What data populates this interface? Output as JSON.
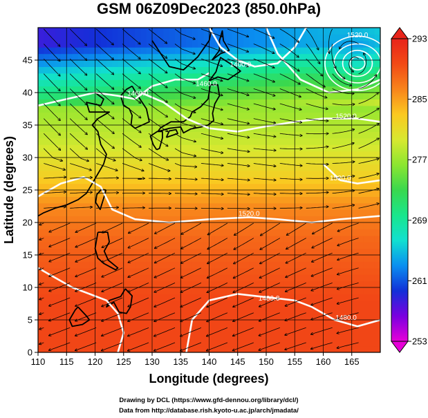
{
  "chart_data": {
    "type": "heatmap",
    "title": "GSM 06Z09Dec2023 (850.0hPa)",
    "xlabel": "Longitude (degrees)",
    "ylabel": "Latitude  (degrees)",
    "xlim": [
      110,
      170
    ],
    "ylim": [
      0,
      50
    ],
    "xticks": [
      110,
      115,
      120,
      125,
      130,
      135,
      140,
      145,
      150,
      155,
      160,
      165
    ],
    "yticks": [
      0,
      5,
      10,
      15,
      20,
      25,
      30,
      35,
      40,
      45
    ],
    "grid": true,
    "colorbar": {
      "min": 253,
      "max": 293,
      "ticks": [
        253,
        261,
        269,
        277,
        285,
        293
      ],
      "colors": [
        "#e600d8",
        "#7a00e0",
        "#1230d8",
        "#0a8ff0",
        "#11e0d0",
        "#19e68c",
        "#3ad84e",
        "#8ce630",
        "#d8e830",
        "#fbc820",
        "#f8841c",
        "#f24a16",
        "#e8241a"
      ]
    },
    "temperature_field": {
      "description_values_by_latitude_band": [
        {
          "lat": 47.5,
          "value": 262
        },
        {
          "lat": 42.5,
          "value": 270
        },
        {
          "lat": 37.5,
          "value": 277
        },
        {
          "lat": 32.5,
          "value": 279
        },
        {
          "lat": 27.5,
          "value": 282
        },
        {
          "lat": 22.5,
          "value": 286
        },
        {
          "lat": 17.5,
          "value": 288
        },
        {
          "lat": 12.5,
          "value": 289
        },
        {
          "lat": 7.5,
          "value": 290
        },
        {
          "lat": 2.5,
          "value": 290
        }
      ]
    },
    "contour_labels": [
      {
        "text": "1520.0",
        "lon": 166,
        "lat": 48.5
      },
      {
        "text": "1400.0",
        "lon": 145.5,
        "lat": 44
      },
      {
        "text": "1460.0",
        "lon": 139.5,
        "lat": 41
      },
      {
        "text": "1460.0",
        "lon": 127.5,
        "lat": 39.5
      },
      {
        "text": "1520.0",
        "lon": 164,
        "lat": 36
      },
      {
        "text": "1520.0",
        "lon": 163,
        "lat": 26.5
      },
      {
        "text": "1520.0",
        "lon": 147,
        "lat": 21
      },
      {
        "text": "1480.0",
        "lon": 150.5,
        "lat": 8
      },
      {
        "text": "1480.0",
        "lon": 164,
        "lat": 5
      }
    ]
  },
  "credits": {
    "line1": "Drawing by DCL (https://www.gfd-dennou.org/library/dcl/)",
    "line2": "Data from http://database.rish.kyoto-u.ac.jp/arch/jmadata/"
  }
}
